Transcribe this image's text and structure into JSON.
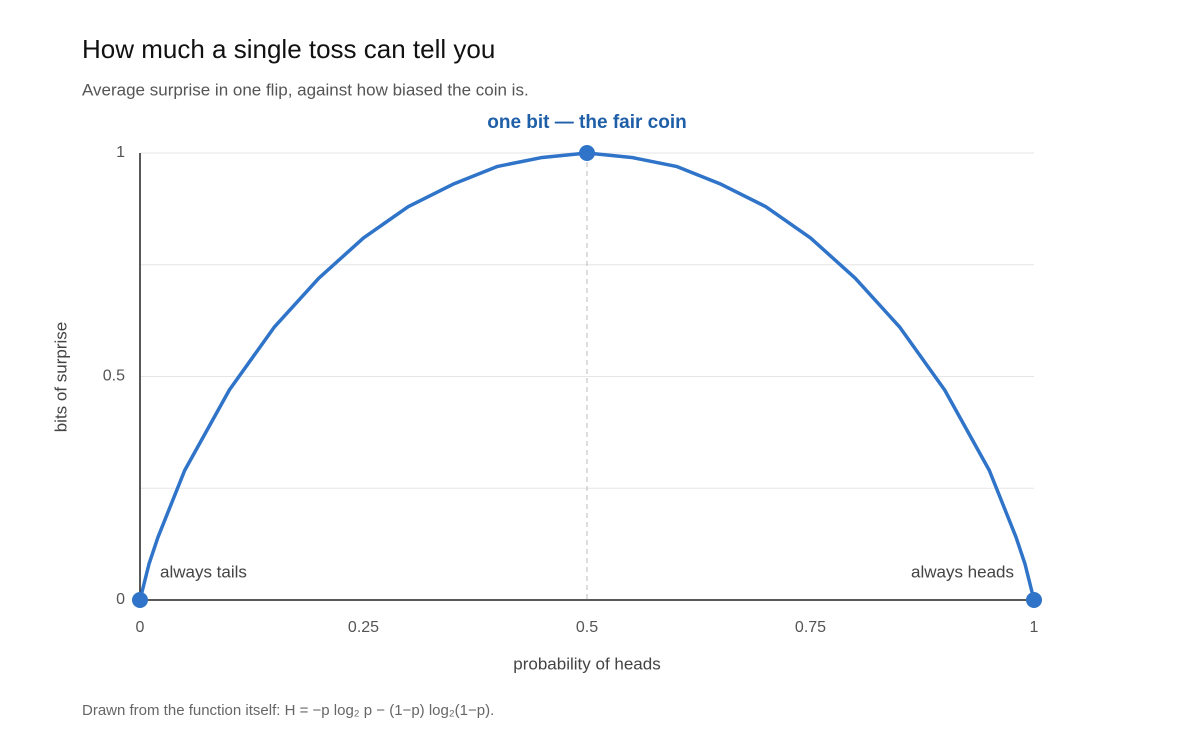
{
  "chart_data": {
    "type": "line",
    "title": "How much a single toss can tell you",
    "subtitle": "Average surprise in one flip, against how biased the coin is.",
    "x_label": "probability of heads",
    "y_label": "bits of surprise",
    "footnote": "Drawn from the function itself: H = −p log₂ p − (1−p) log₂(1−p).",
    "x": [
      0,
      0.01,
      0.02,
      0.05,
      0.1,
      0.15,
      0.2,
      0.25,
      0.3,
      0.35,
      0.4,
      0.45,
      0.5,
      0.55,
      0.6,
      0.65,
      0.7,
      0.75,
      0.8,
      0.85,
      0.9,
      0.95,
      0.98,
      0.99,
      1
    ],
    "series": [
      {
        "color": "#2f74c8",
        "values": [
          0,
          0.08,
          0.14,
          0.29,
          0.47,
          0.61,
          0.72,
          0.81,
          0.88,
          0.93,
          0.97,
          0.99,
          1,
          0.99,
          0.97,
          0.93,
          0.88,
          0.81,
          0.72,
          0.61,
          0.47,
          0.29,
          0.14,
          0.08,
          0
        ]
      }
    ],
    "points": [
      {
        "x": 0,
        "y": 0,
        "label": "always tails"
      },
      {
        "x": 0.5,
        "y": 1,
        "label": "one bit — the fair coin"
      },
      {
        "x": 1,
        "y": 0,
        "label": "always heads"
      }
    ],
    "xlim": [
      0,
      1
    ],
    "xticks": [
      0,
      0.25,
      0.5,
      0.75,
      1
    ],
    "ylim": [
      0,
      1
    ],
    "yticks": [
      0,
      0.5,
      1
    ],
    "y_grid": [
      0.25,
      0.5,
      0.75,
      1
    ],
    "grid": true
  }
}
